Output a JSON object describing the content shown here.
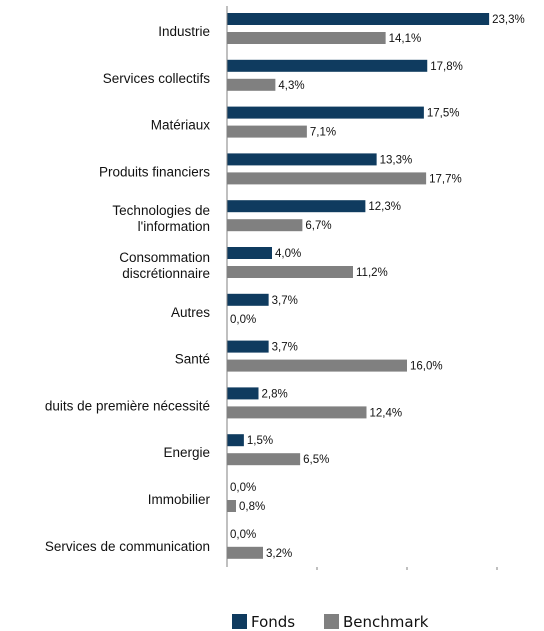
{
  "chart_data": {
    "type": "bar",
    "orientation": "horizontal",
    "categories": [
      "Industrie",
      "Services collectifs",
      "Matériaux",
      "Produits financiers",
      "Technologies de\nl'information",
      "Consommation\ndiscrétionnaire",
      "Autres",
      "Santé",
      "duits de première nécessité",
      "Energie",
      "Immobilier",
      "Services de communication"
    ],
    "series": [
      {
        "name": "Fonds",
        "color": "#0f3b5f",
        "values": [
          23.3,
          17.8,
          17.5,
          13.3,
          12.3,
          4.0,
          3.7,
          3.7,
          2.8,
          1.5,
          0.0,
          0.0
        ],
        "labels": [
          "23,3%",
          "17,8%",
          "17,5%",
          "13,3%",
          "12,3%",
          "4,0%",
          "3,7%",
          "3,7%",
          "2,8%",
          "1,5%",
          "0,0%",
          "0,0%"
        ]
      },
      {
        "name": "Benchmark",
        "color": "#808080",
        "values": [
          14.1,
          4.3,
          7.1,
          17.7,
          6.7,
          11.2,
          0.0,
          16.0,
          12.4,
          6.5,
          0.8,
          3.2
        ],
        "labels": [
          "14,1%",
          "4,3%",
          "7,1%",
          "17,7%",
          "6,7%",
          "11,2%",
          "0,0%",
          "16,0%",
          "12,4%",
          "6,5%",
          "0,8%",
          "3,2%"
        ]
      }
    ],
    "xlim": [
      0,
      24
    ],
    "grid": false,
    "legend": "bottom"
  }
}
